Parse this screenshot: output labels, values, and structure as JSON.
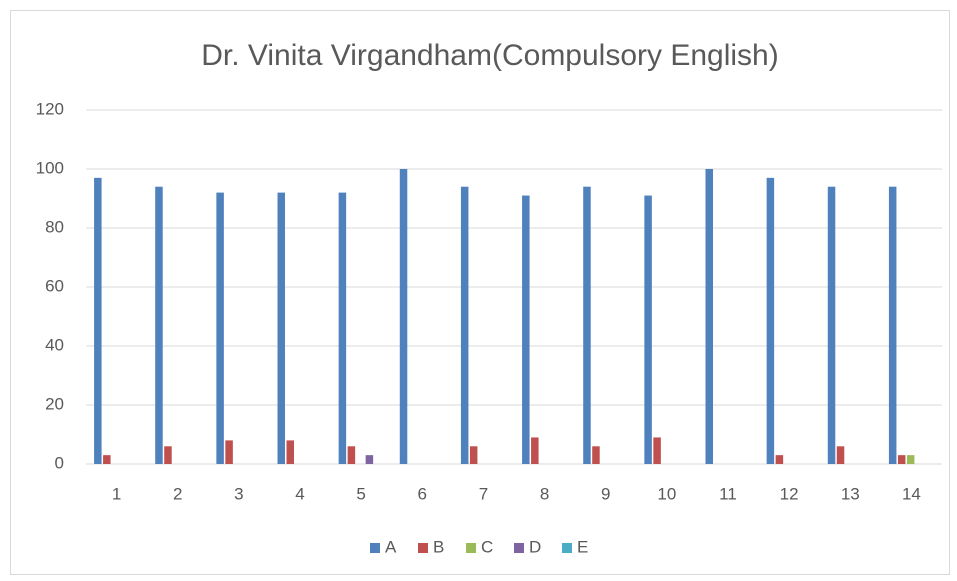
{
  "chart_data": {
    "type": "bar",
    "title": "Dr. Vinita Virgandham(Compulsory English)",
    "categories": [
      "1",
      "2",
      "3",
      "4",
      "5",
      "6",
      "7",
      "8",
      "9",
      "10",
      "11",
      "12",
      "13",
      "14"
    ],
    "series": [
      {
        "name": "A",
        "color": "#4f81bd",
        "values": [
          97,
          94,
          92,
          92,
          92,
          100,
          94,
          91,
          94,
          91,
          100,
          97,
          94,
          94
        ]
      },
      {
        "name": "B",
        "color": "#c0504d",
        "values": [
          3,
          6,
          8,
          8,
          6,
          0,
          6,
          9,
          6,
          9,
          0,
          3,
          6,
          3
        ]
      },
      {
        "name": "C",
        "color": "#9bbb59",
        "values": [
          0,
          0,
          0,
          0,
          0,
          0,
          0,
          0,
          0,
          0,
          0,
          0,
          0,
          3
        ]
      },
      {
        "name": "D",
        "color": "#8064a2",
        "values": [
          0,
          0,
          0,
          0,
          3,
          0,
          0,
          0,
          0,
          0,
          0,
          0,
          0,
          0
        ]
      },
      {
        "name": "E",
        "color": "#4bacc6",
        "values": [
          0,
          0,
          0,
          0,
          0,
          0,
          0,
          0,
          0,
          0,
          0,
          0,
          0,
          0
        ]
      }
    ],
    "ylim": [
      0,
      120
    ],
    "yticks": [
      0,
      20,
      40,
      60,
      80,
      100,
      120
    ],
    "grid": true,
    "legend": "bottom"
  }
}
